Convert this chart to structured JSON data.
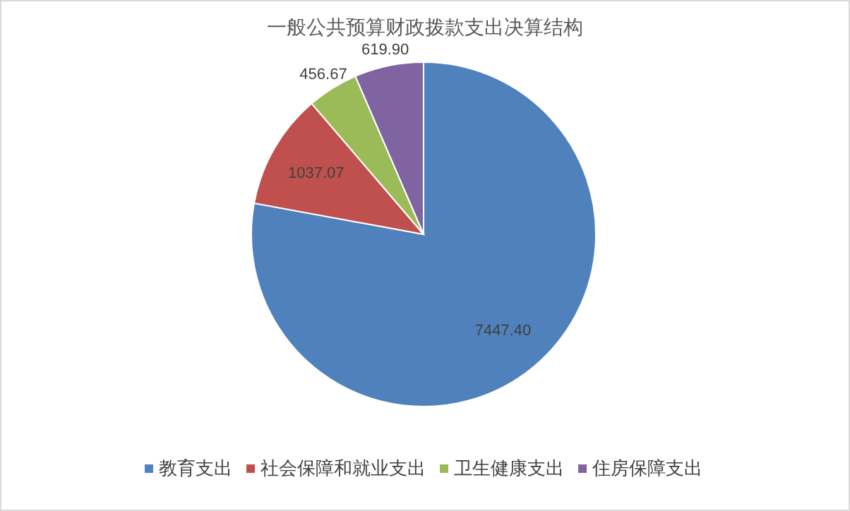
{
  "chart_data": {
    "type": "pie",
    "title": "一般公共预算财政拨款支出决算结构",
    "categories": [
      "教育支出",
      "社会保障和就业支出",
      "卫生健康支出",
      "住房保障支出"
    ],
    "values": [
      7447.4,
      1037.07,
      456.67,
      619.9
    ],
    "value_labels": [
      "7447.40",
      "1037.07",
      "456.67",
      "619.90"
    ],
    "colors": [
      "#4f81bd",
      "#c0504d",
      "#9bbb59",
      "#8064a2"
    ],
    "legend": "bottom"
  }
}
